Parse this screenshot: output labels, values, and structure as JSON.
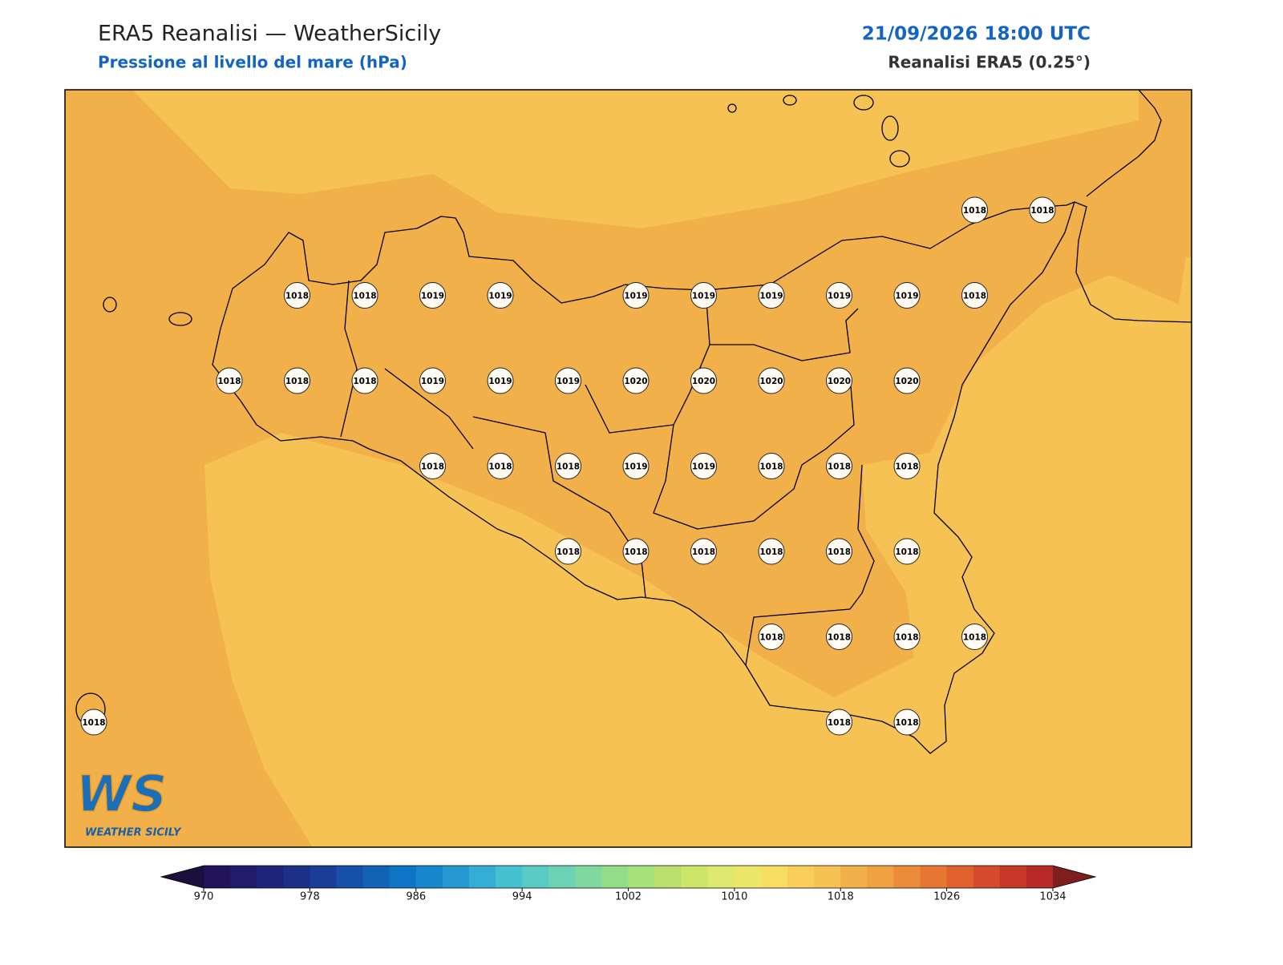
{
  "header": {
    "title": "ERA5 Reanalisi — WeatherSicily",
    "subtitle": "Pressione al livello del mare (hPa)",
    "datetime": "21/09/2026 18:00 UTC",
    "source": "Reanalisi ERA5 (0.25°)"
  },
  "stations": {
    "grid": [
      [
        null,
        null,
        null,
        null,
        null,
        null,
        null,
        null,
        null,
        null,
        null,
        null,
        null,
        1018,
        1018
      ],
      [
        null,
        null,
        null,
        1018,
        1018,
        1019,
        1019,
        null,
        1019,
        1019,
        1019,
        1019,
        1019,
        1018,
        null
      ],
      [
        null,
        null,
        1018,
        1018,
        1018,
        1019,
        1019,
        1019,
        1020,
        1020,
        1020,
        1020,
        1020,
        null,
        null
      ],
      [
        null,
        null,
        null,
        null,
        null,
        1018,
        1018,
        1018,
        1019,
        1019,
        1018,
        1018,
        1018,
        null,
        null
      ],
      [
        null,
        null,
        null,
        null,
        null,
        null,
        null,
        1018,
        1018,
        1018,
        1018,
        1018,
        1018,
        null,
        null
      ],
      [
        null,
        null,
        null,
        null,
        null,
        null,
        null,
        null,
        null,
        null,
        1018,
        1018,
        1018,
        1018,
        null
      ],
      [
        1018,
        null,
        null,
        null,
        null,
        null,
        null,
        null,
        null,
        null,
        null,
        1018,
        1018,
        null,
        null
      ]
    ]
  },
  "colorbar": {
    "ticks": [
      970,
      978,
      986,
      994,
      1002,
      1010,
      1018,
      1026,
      1034
    ],
    "colors": [
      "#23135a",
      "#201b6b",
      "#1e2478",
      "#1d3088",
      "#1a3e98",
      "#1650a8",
      "#1262b6",
      "#0e74c3",
      "#1786cc",
      "#2598d2",
      "#34aed4",
      "#46c1d0",
      "#5acbc4",
      "#6bd3b3",
      "#7fd99e",
      "#93dd8a",
      "#a7e17a",
      "#badf6c",
      "#cde569",
      "#dde96c",
      "#ece76b",
      "#f7dd62",
      "#f9ce5a",
      "#f6c254",
      "#f2b04a",
      "#efa041",
      "#ec8b39",
      "#e67733",
      "#df612e",
      "#d54a2b",
      "#c83829",
      "#b72a28"
    ],
    "under_color": "#1b0f3d",
    "over_color": "#7e1f1f"
  },
  "logo": {
    "mark": "WS",
    "name": "WEATHER SICILY"
  }
}
